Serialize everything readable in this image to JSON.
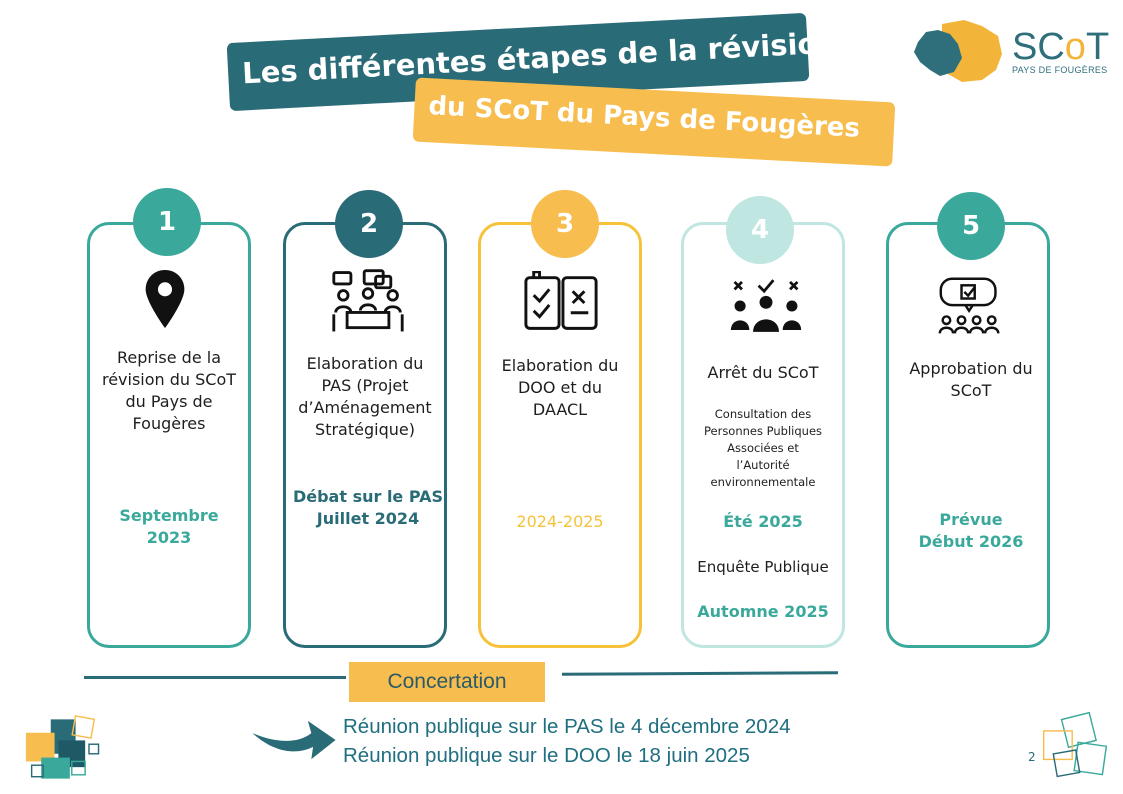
{
  "title": {
    "line1": "Les différentes étapes de la révision",
    "line2": "du SCoT du Pays de Fougères"
  },
  "logo": {
    "main_left": "SC",
    "main_o": "o",
    "main_right": "T",
    "sub": "PAYS DE FOUGÈRES"
  },
  "colors": {
    "teal": "#3aa99b",
    "dark_teal": "#2a6b78",
    "yellow": "#f7bd4e",
    "light_teal": "#bfe6e1"
  },
  "steps": [
    {
      "number": "1",
      "icon": "map-pin-icon",
      "title": [
        "Reprise de la",
        "révision du SCoT",
        "du Pays de",
        "Fougères"
      ],
      "date": [
        "Septembre",
        "2023"
      ]
    },
    {
      "number": "2",
      "icon": "meeting-icon",
      "title": [
        "Elaboration du",
        "PAS (Projet",
        "d’Aménagement",
        "Stratégique)"
      ],
      "date": [
        "Débat sur le PAS",
        "Juillet 2024"
      ]
    },
    {
      "number": "3",
      "icon": "checklist-book-icon",
      "title": [
        "Elaboration du",
        "DOO et du",
        "DAACL"
      ],
      "date": [
        "2024-2025"
      ]
    },
    {
      "number": "4",
      "icon": "vote-people-icon",
      "title": [
        "Arrêt du SCoT"
      ],
      "consultation": [
        "Consultation des",
        "Personnes Publiques",
        "Associées  et",
        "l’Autorité",
        "environnementale"
      ],
      "date1": "Été 2025",
      "enquete": "Enquête Publique",
      "date2": "Automne 2025"
    },
    {
      "number": "5",
      "icon": "presentation-audience-icon",
      "title": [
        "Approbation du",
        "SCoT"
      ],
      "date": [
        "Prévue",
        "Début 2026"
      ]
    }
  ],
  "concertation": {
    "label": "Concertation",
    "items": [
      "Réunion publique sur le PAS le 4 décembre 2024",
      "Réunion publique sur le DOO le 18 juin 2025"
    ]
  },
  "page_number": "2"
}
